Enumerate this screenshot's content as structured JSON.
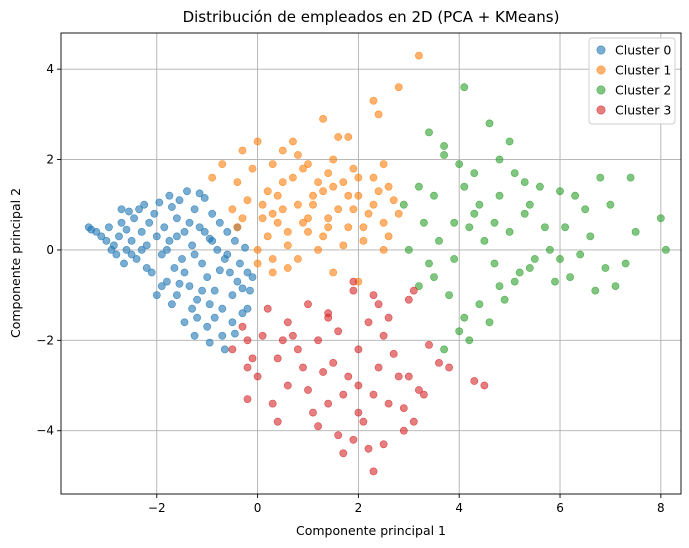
{
  "chart_data": {
    "type": "scatter",
    "title": "Distribución de empleados en 2D (PCA + KMeans)",
    "xlabel": "Componente principal 1",
    "ylabel": "Componente principal 2",
    "xlim": [
      -3.9,
      8.4
    ],
    "ylim": [
      -5.4,
      4.8
    ],
    "xticks": [
      -2,
      0,
      2,
      4,
      6,
      8
    ],
    "yticks": [
      -4,
      -2,
      0,
      2,
      4
    ],
    "xtick_labels": [
      "−2",
      "0",
      "2",
      "4",
      "6",
      "8"
    ],
    "ytick_labels": [
      "−4",
      "−2",
      "0",
      "2",
      "4"
    ],
    "grid": true,
    "legend_position": "top-right",
    "marker_alpha": 0.6,
    "series": [
      {
        "name": "Cluster 0",
        "color": "#1f77b4",
        "points": [
          [
            -3.3,
            0.45
          ],
          [
            -3.2,
            0.4
          ],
          [
            -3.1,
            0.3
          ],
          [
            -3.0,
            0.2
          ],
          [
            -2.95,
            0.5
          ],
          [
            -2.85,
            0.1
          ],
          [
            -2.8,
            -0.1
          ],
          [
            -2.75,
            0.3
          ],
          [
            -2.7,
            0.6
          ],
          [
            -2.65,
            -0.3
          ],
          [
            -2.6,
            0.0
          ],
          [
            -2.55,
            0.85
          ],
          [
            -2.5,
            0.2
          ],
          [
            -2.45,
            0.7
          ],
          [
            -2.4,
            -0.2
          ],
          [
            -2.35,
            0.9
          ],
          [
            -2.3,
            0.4
          ],
          [
            -2.25,
            1.0
          ],
          [
            -2.2,
            0.1
          ],
          [
            -2.15,
            0.6
          ],
          [
            -2.1,
            -0.5
          ],
          [
            -2.05,
            0.8
          ],
          [
            -2.0,
            0.3
          ],
          [
            -1.95,
            1.05
          ],
          [
            -1.9,
            -0.1
          ],
          [
            -1.85,
            0.5
          ],
          [
            -1.8,
            -0.7
          ],
          [
            -1.75,
            0.2
          ],
          [
            -1.7,
            0.95
          ],
          [
            -1.65,
            -0.4
          ],
          [
            -1.6,
            0.7
          ],
          [
            -1.55,
            1.1
          ],
          [
            -1.5,
            -0.2
          ],
          [
            -1.45,
            0.4
          ],
          [
            -1.4,
            1.3
          ],
          [
            -1.35,
            -0.8
          ],
          [
            -1.3,
            0.1
          ],
          [
            -1.25,
            0.9
          ],
          [
            -1.2,
            -1.1
          ],
          [
            -1.15,
            0.5
          ],
          [
            -1.1,
            -0.3
          ],
          [
            -1.05,
            1.15
          ],
          [
            -1.0,
            -0.6
          ],
          [
            -0.95,
            0.25
          ],
          [
            -0.9,
            0.8
          ],
          [
            -0.85,
            -0.9
          ],
          [
            -0.8,
            0.0
          ],
          [
            -0.75,
            0.6
          ],
          [
            -0.7,
            -1.3
          ],
          [
            -0.65,
            -0.2
          ],
          [
            -0.6,
            0.4
          ],
          [
            -0.55,
            -0.5
          ],
          [
            -0.5,
            -1.0
          ],
          [
            -0.45,
            0.2
          ],
          [
            -0.4,
            -0.7
          ],
          [
            -0.35,
            -0.3
          ],
          [
            -0.3,
            -1.4
          ],
          [
            -0.25,
            0.05
          ],
          [
            -0.2,
            -0.5
          ],
          [
            -0.15,
            -0.9
          ],
          [
            -1.0,
            -1.7
          ],
          [
            -0.7,
            -1.9
          ],
          [
            -0.65,
            -2.2
          ],
          [
            -1.3,
            -1.3
          ],
          [
            -1.6,
            -1.0
          ],
          [
            -1.9,
            -0.8
          ],
          [
            -2.2,
            -0.4
          ],
          [
            -2.5,
            -0.1
          ],
          [
            -2.9,
            0.0
          ],
          [
            -1.2,
            -1.5
          ],
          [
            -0.5,
            -1.6
          ],
          [
            -0.2,
            -1.3
          ],
          [
            -0.85,
            -1.5
          ],
          [
            -1.45,
            -1.6
          ],
          [
            -1.7,
            -1.2
          ],
          [
            -2.0,
            -1.0
          ],
          [
            -1.1,
            -0.9
          ],
          [
            -0.95,
            -1.2
          ],
          [
            -1.8,
            0.0
          ],
          [
            -1.6,
            0.3
          ],
          [
            -1.35,
            0.6
          ],
          [
            -1.25,
            -0.1
          ],
          [
            -0.9,
            0.2
          ],
          [
            -0.6,
            -0.1
          ],
          [
            -0.4,
            0.5
          ],
          [
            -2.3,
            0.0
          ],
          [
            -2.6,
            0.45
          ],
          [
            -1.45,
            -0.5
          ],
          [
            -1.05,
            0.4
          ],
          [
            -0.75,
            -0.45
          ],
          [
            -1.55,
            -0.75
          ],
          [
            -0.3,
            -0.85
          ],
          [
            -0.1,
            -0.6
          ],
          [
            -1.15,
            1.25
          ],
          [
            -1.75,
            1.2
          ],
          [
            -2.7,
            0.9
          ],
          [
            -3.35,
            0.5
          ],
          [
            -0.95,
            -2.05
          ],
          [
            -1.25,
            -1.9
          ],
          [
            -0.45,
            -1.85
          ]
        ]
      },
      {
        "name": "Cluster 1",
        "color": "#ff7f0e",
        "points": [
          [
            3.2,
            4.3
          ],
          [
            2.8,
            3.6
          ],
          [
            2.3,
            3.3
          ],
          [
            2.4,
            3.0
          ],
          [
            1.3,
            2.9
          ],
          [
            1.6,
            2.5
          ],
          [
            1.8,
            2.5
          ],
          [
            0.7,
            2.4
          ],
          [
            0.5,
            2.2
          ],
          [
            0.0,
            2.4
          ],
          [
            -0.3,
            2.2
          ],
          [
            -0.7,
            1.9
          ],
          [
            -0.9,
            1.6
          ],
          [
            0.3,
            1.9
          ],
          [
            0.9,
            1.8
          ],
          [
            1.2,
            1.5
          ],
          [
            1.5,
            1.4
          ],
          [
            2.0,
            1.6
          ],
          [
            2.5,
            1.9
          ],
          [
            2.6,
            1.4
          ],
          [
            2.3,
            1.0
          ],
          [
            1.9,
            0.9
          ],
          [
            1.4,
            0.7
          ],
          [
            1.0,
            0.4
          ],
          [
            0.6,
            0.1
          ],
          [
            0.3,
            -0.2
          ],
          [
            0.0,
            -0.3
          ],
          [
            0.4,
            0.6
          ],
          [
            0.8,
            1.0
          ],
          [
            1.1,
            1.2
          ],
          [
            -0.4,
            1.5
          ],
          [
            -0.2,
            1.1
          ],
          [
            0.1,
            0.7
          ],
          [
            0.5,
            0.9
          ],
          [
            0.9,
            0.6
          ],
          [
            1.3,
            0.3
          ],
          [
            1.7,
            0.1
          ],
          [
            2.1,
            0.5
          ],
          [
            2.5,
            0.6
          ],
          [
            2.8,
            0.8
          ],
          [
            -0.5,
            0.9
          ],
          [
            -0.4,
            0.5
          ],
          [
            0.2,
            1.3
          ],
          [
            0.7,
            1.6
          ],
          [
            1.0,
            1.9
          ],
          [
            1.4,
            1.7
          ],
          [
            1.8,
            1.2
          ],
          [
            2.2,
            0.8
          ],
          [
            2.6,
            0.3
          ],
          [
            0.0,
            0.0
          ],
          [
            0.3,
            -0.5
          ],
          [
            1.5,
            -0.5
          ],
          [
            2.0,
            -0.7
          ],
          [
            2.5,
            0.0
          ],
          [
            1.2,
            0.0
          ],
          [
            0.8,
            -0.2
          ],
          [
            1.6,
            0.9
          ],
          [
            0.4,
            1.2
          ],
          [
            0.6,
            0.4
          ],
          [
            1.9,
            1.8
          ],
          [
            2.4,
            1.3
          ],
          [
            1.1,
            1.0
          ],
          [
            -0.1,
            1.8
          ],
          [
            0.2,
            0.3
          ],
          [
            1.3,
            1.3
          ],
          [
            1.7,
            1.5
          ],
          [
            0.5,
            1.5
          ],
          [
            2.1,
            0.2
          ],
          [
            2.7,
            1.1
          ],
          [
            1.0,
            0.7
          ],
          [
            0.1,
            1.0
          ],
          [
            0.8,
            2.1
          ],
          [
            1.5,
            2.0
          ],
          [
            2.3,
            1.6
          ],
          [
            0.6,
            -0.4
          ],
          [
            1.8,
            0.5
          ],
          [
            2.0,
            1.2
          ],
          [
            0.3,
            0.8
          ],
          [
            -0.3,
            0.7
          ],
          [
            1.4,
            0.5
          ]
        ]
      },
      {
        "name": "Cluster 2",
        "color": "#2ca02c",
        "points": [
          [
            4.1,
            3.6
          ],
          [
            4.6,
            2.8
          ],
          [
            5.0,
            2.4
          ],
          [
            3.4,
            2.6
          ],
          [
            3.7,
            2.3
          ],
          [
            3.7,
            2.1
          ],
          [
            4.0,
            1.9
          ],
          [
            4.8,
            2.0
          ],
          [
            5.1,
            1.7
          ],
          [
            4.3,
            1.7
          ],
          [
            3.2,
            1.4
          ],
          [
            3.5,
            1.2
          ],
          [
            4.1,
            1.4
          ],
          [
            4.4,
            1.0
          ],
          [
            4.8,
            1.2
          ],
          [
            5.3,
            1.5
          ],
          [
            5.6,
            1.4
          ],
          [
            6.0,
            1.3
          ],
          [
            6.3,
            1.2
          ],
          [
            6.8,
            1.6
          ],
          [
            7.0,
            1.0
          ],
          [
            7.4,
            1.6
          ],
          [
            7.5,
            0.4
          ],
          [
            8.1,
            0.0
          ],
          [
            8.0,
            0.7
          ],
          [
            2.9,
            1.0
          ],
          [
            3.3,
            0.6
          ],
          [
            3.6,
            0.2
          ],
          [
            3.9,
            -0.2
          ],
          [
            4.2,
            0.5
          ],
          [
            4.5,
            0.2
          ],
          [
            4.7,
            -0.3
          ],
          [
            5.0,
            0.4
          ],
          [
            5.3,
            0.8
          ],
          [
            5.5,
            -0.2
          ],
          [
            5.8,
            0.0
          ],
          [
            6.1,
            0.5
          ],
          [
            6.4,
            -0.1
          ],
          [
            6.6,
            0.3
          ],
          [
            6.9,
            -0.4
          ],
          [
            7.1,
            -0.8
          ],
          [
            6.7,
            -0.9
          ],
          [
            6.2,
            -0.6
          ],
          [
            5.9,
            -0.7
          ],
          [
            5.4,
            -0.4
          ],
          [
            5.1,
            -0.7
          ],
          [
            4.8,
            -0.8
          ],
          [
            4.4,
            -1.2
          ],
          [
            4.1,
            -1.5
          ],
          [
            3.8,
            -1.0
          ],
          [
            3.5,
            -0.6
          ],
          [
            3.0,
            0.0
          ],
          [
            3.2,
            -0.8
          ],
          [
            3.7,
            -2.2
          ],
          [
            4.2,
            -2.0
          ],
          [
            4.0,
            -1.8
          ],
          [
            4.6,
            -1.6
          ],
          [
            4.9,
            -1.1
          ],
          [
            5.2,
            -0.5
          ],
          [
            5.7,
            0.5
          ],
          [
            6.0,
            -0.2
          ],
          [
            6.5,
            0.9
          ],
          [
            7.3,
            -0.3
          ],
          [
            4.3,
            0.8
          ],
          [
            3.9,
            0.6
          ],
          [
            4.7,
            0.6
          ],
          [
            5.4,
            1.0
          ],
          [
            3.4,
            -0.3
          ]
        ]
      },
      {
        "name": "Cluster 3",
        "color": "#d62728",
        "points": [
          [
            1.9,
            -0.7
          ],
          [
            1.9,
            -0.9
          ],
          [
            2.3,
            -1.0
          ],
          [
            2.4,
            -1.2
          ],
          [
            3.1,
            -0.9
          ],
          [
            3.0,
            -1.1
          ],
          [
            2.6,
            -1.5
          ],
          [
            2.2,
            -1.6
          ],
          [
            1.4,
            -1.4
          ],
          [
            1.0,
            -1.2
          ],
          [
            0.6,
            -1.6
          ],
          [
            0.2,
            -1.3
          ],
          [
            -0.2,
            -2.0
          ],
          [
            -0.5,
            -2.2
          ],
          [
            -0.2,
            -2.6
          ],
          [
            0.0,
            -2.8
          ],
          [
            0.4,
            -2.4
          ],
          [
            0.8,
            -2.2
          ],
          [
            1.2,
            -2.0
          ],
          [
            1.6,
            -1.8
          ],
          [
            2.0,
            -2.2
          ],
          [
            2.4,
            -2.6
          ],
          [
            2.7,
            -2.3
          ],
          [
            3.0,
            -2.8
          ],
          [
            3.4,
            -2.1
          ],
          [
            3.8,
            -2.6
          ],
          [
            4.3,
            -2.9
          ],
          [
            4.5,
            -3.0
          ],
          [
            3.3,
            -3.2
          ],
          [
            2.9,
            -3.5
          ],
          [
            2.6,
            -3.4
          ],
          [
            2.3,
            -3.2
          ],
          [
            2.0,
            -3.0
          ],
          [
            1.7,
            -3.2
          ],
          [
            1.4,
            -3.4
          ],
          [
            1.0,
            -3.1
          ],
          [
            0.6,
            -3.0
          ],
          [
            0.3,
            -3.4
          ],
          [
            -0.2,
            -3.3
          ],
          [
            0.4,
            -3.8
          ],
          [
            1.2,
            -3.9
          ],
          [
            1.6,
            -4.1
          ],
          [
            1.9,
            -4.2
          ],
          [
            2.2,
            -4.4
          ],
          [
            1.7,
            -4.5
          ],
          [
            2.5,
            -4.3
          ],
          [
            2.9,
            -4.0
          ],
          [
            3.1,
            -3.8
          ],
          [
            2.3,
            -4.9
          ],
          [
            2.0,
            -3.6
          ],
          [
            1.3,
            -2.7
          ],
          [
            0.9,
            -2.6
          ],
          [
            0.5,
            -2.0
          ],
          [
            -0.3,
            -1.7
          ],
          [
            1.5,
            -2.5
          ],
          [
            2.8,
            -2.8
          ],
          [
            3.6,
            -2.5
          ],
          [
            1.1,
            -3.6
          ],
          [
            0.7,
            -1.9
          ],
          [
            1.8,
            -2.8
          ],
          [
            2.5,
            -1.9
          ],
          [
            3.2,
            -3.1
          ],
          [
            -0.1,
            -2.4
          ],
          [
            2.1,
            -3.8
          ],
          [
            1.4,
            -1.5
          ],
          [
            0.1,
            -1.9
          ]
        ]
      }
    ]
  }
}
